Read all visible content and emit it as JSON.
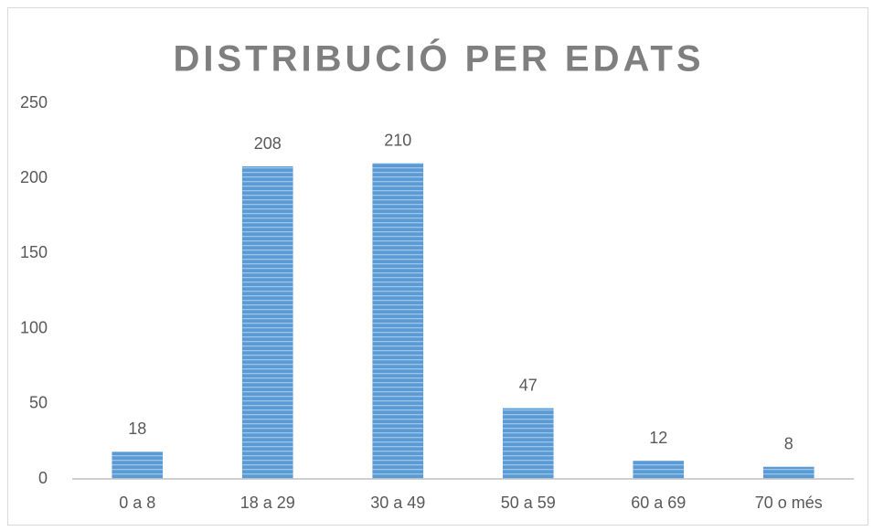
{
  "chart_data": {
    "type": "bar",
    "title": "DISTRIBUCIÓ PER EDATS",
    "categories": [
      "0 a 8",
      "18 a 29",
      "30 a 49",
      "50 a 59",
      "60 a 69",
      "70 o més"
    ],
    "values": [
      18,
      208,
      210,
      47,
      12,
      8
    ],
    "color": "#5b9bd5",
    "ylim": [
      0,
      250
    ],
    "yticks": [
      0,
      50,
      100,
      150,
      200,
      250
    ],
    "grid": false
  }
}
